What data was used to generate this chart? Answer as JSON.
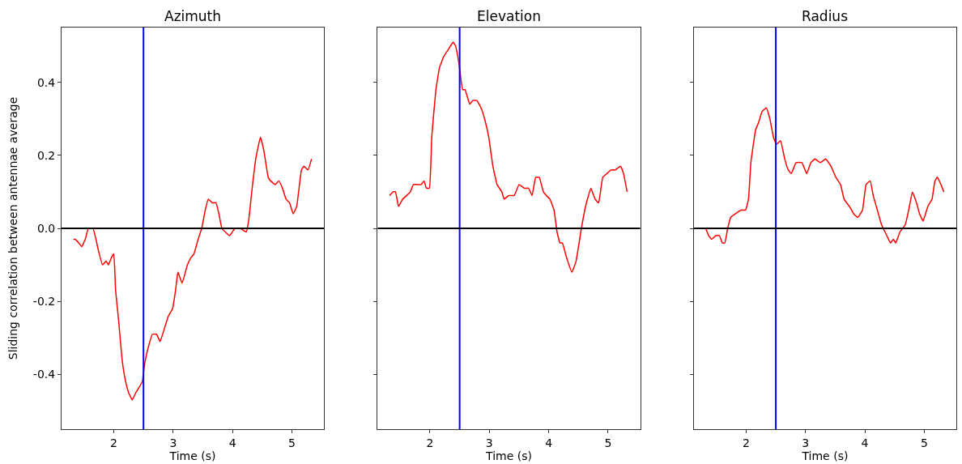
{
  "chart_data": [
    {
      "type": "line",
      "title": "Azimuth",
      "xlabel": "Time (s)",
      "ylabel": "Sliding correlation between antennae average",
      "series": [
        {
          "color": "#ff0000",
          "x": [
            1.32,
            1.35,
            1.41,
            1.46,
            1.52,
            1.57,
            1.61,
            1.65,
            1.7,
            1.74,
            1.81,
            1.87,
            1.91,
            1.96,
            2.0,
            2.03,
            2.08,
            2.14,
            2.2,
            2.25,
            2.31,
            2.37,
            2.41,
            2.48,
            2.52,
            2.59,
            2.65,
            2.72,
            2.78,
            2.86,
            2.92,
            2.99,
            3.04,
            3.08,
            3.15,
            3.24,
            3.3,
            3.35,
            3.42,
            3.48,
            3.54,
            3.59,
            3.66,
            3.72,
            3.77,
            3.82,
            3.88,
            3.95,
            4.04,
            4.13,
            4.23,
            4.27,
            4.33,
            4.39,
            4.47,
            4.53,
            4.6,
            4.64,
            4.72,
            4.78,
            4.84,
            4.9,
            4.96,
            5.02,
            5.08,
            5.16,
            5.2,
            5.27,
            5.33
          ],
          "values": [
            -0.03,
            -0.03,
            -0.04,
            -0.05,
            -0.03,
            0.0,
            0.0,
            0.0,
            -0.03,
            -0.06,
            -0.1,
            -0.09,
            -0.1,
            -0.08,
            -0.07,
            -0.17,
            -0.25,
            -0.36,
            -0.42,
            -0.45,
            -0.47,
            -0.45,
            -0.44,
            -0.42,
            -0.37,
            -0.32,
            -0.29,
            -0.29,
            -0.31,
            -0.27,
            -0.24,
            -0.22,
            -0.17,
            -0.12,
            -0.15,
            -0.1,
            -0.08,
            -0.07,
            -0.03,
            0.0,
            0.05,
            0.08,
            0.07,
            0.07,
            0.04,
            0.0,
            -0.01,
            -0.02,
            0.0,
            0.0,
            -0.01,
            0.02,
            0.11,
            0.19,
            0.25,
            0.21,
            0.14,
            0.13,
            0.12,
            0.13,
            0.11,
            0.08,
            0.07,
            0.04,
            0.06,
            0.16,
            0.17,
            0.16,
            0.19
          ]
        }
      ],
      "xlim": [
        1.12,
        5.54
      ],
      "xticks": [
        2,
        3,
        4,
        5
      ],
      "ylim": [
        -0.55,
        0.55
      ],
      "yticks": [
        -0.4,
        -0.2,
        {
          "value": 0,
          "label": "0.0"
        },
        0.2,
        0.4
      ],
      "ref_lines": [
        {
          "axis": "x",
          "value": 2.5,
          "color": "#0000ff"
        },
        {
          "axis": "y",
          "value": 0,
          "color": "#000000"
        }
      ]
    },
    {
      "type": "line",
      "title": "Elevation",
      "xlabel": "Time (s)",
      "tick_labels": "x",
      "series": [
        {
          "color": "#ff0000",
          "x": [
            1.32,
            1.38,
            1.42,
            1.47,
            1.54,
            1.61,
            1.67,
            1.72,
            1.79,
            1.85,
            1.9,
            1.94,
            1.99,
            2.03,
            2.1,
            2.16,
            2.23,
            2.31,
            2.39,
            2.43,
            2.49,
            2.55,
            2.59,
            2.67,
            2.72,
            2.79,
            2.86,
            2.92,
            2.99,
            3.06,
            3.13,
            3.21,
            3.25,
            3.33,
            3.42,
            3.5,
            3.59,
            3.66,
            3.72,
            3.78,
            3.84,
            3.91,
            3.96,
            4.02,
            4.09,
            4.14,
            4.19,
            4.23,
            4.3,
            4.39,
            4.46,
            4.55,
            4.62,
            4.71,
            4.78,
            4.84,
            4.91,
            4.98,
            5.05,
            5.12,
            5.21,
            5.26,
            5.32
          ],
          "values": [
            0.09,
            0.1,
            0.1,
            0.06,
            0.08,
            0.09,
            0.1,
            0.12,
            0.12,
            0.12,
            0.13,
            0.11,
            0.11,
            0.25,
            0.38,
            0.44,
            0.47,
            0.49,
            0.51,
            0.5,
            0.45,
            0.38,
            0.38,
            0.34,
            0.35,
            0.35,
            0.33,
            0.3,
            0.25,
            0.17,
            0.12,
            0.1,
            0.08,
            0.09,
            0.09,
            0.12,
            0.11,
            0.11,
            0.09,
            0.14,
            0.14,
            0.1,
            0.09,
            0.08,
            0.05,
            -0.01,
            -0.04,
            -0.04,
            -0.08,
            -0.12,
            -0.09,
            0.0,
            0.06,
            0.11,
            0.08,
            0.07,
            0.14,
            0.15,
            0.16,
            0.16,
            0.17,
            0.15,
            0.1
          ]
        }
      ],
      "xlim": [
        1.12,
        5.54
      ],
      "xticks": [
        2,
        3,
        4,
        5
      ],
      "ylim": [
        -0.55,
        0.55
      ],
      "yticks": [
        -0.4,
        -0.2,
        0,
        0.2,
        0.4
      ],
      "ref_lines": [
        {
          "axis": "x",
          "value": 2.5,
          "color": "#0000ff"
        },
        {
          "axis": "y",
          "value": 0,
          "color": "#000000"
        }
      ]
    },
    {
      "type": "line",
      "title": "Radius",
      "xlabel": "Time (s)",
      "tick_labels": "x",
      "series": [
        {
          "color": "#ff0000",
          "x": [
            1.32,
            1.37,
            1.42,
            1.49,
            1.55,
            1.6,
            1.64,
            1.69,
            1.74,
            1.82,
            1.91,
            1.99,
            2.04,
            2.08,
            2.16,
            2.21,
            2.27,
            2.34,
            2.4,
            2.46,
            2.51,
            2.58,
            2.65,
            2.71,
            2.76,
            2.84,
            2.94,
            3.02,
            3.09,
            3.16,
            3.25,
            3.34,
            3.43,
            3.51,
            3.59,
            3.65,
            3.74,
            3.81,
            3.88,
            3.96,
            4.02,
            4.09,
            4.14,
            4.21,
            4.28,
            4.37,
            4.43,
            4.48,
            4.52,
            4.59,
            4.68,
            4.75,
            4.8,
            4.87,
            4.92,
            4.98,
            5.06,
            5.13,
            5.18,
            5.22,
            5.28,
            5.33
          ],
          "values": [
            0.0,
            -0.02,
            -0.03,
            -0.02,
            -0.02,
            -0.04,
            -0.04,
            0.0,
            0.03,
            0.04,
            0.05,
            0.05,
            0.08,
            0.18,
            0.27,
            0.29,
            0.32,
            0.33,
            0.3,
            0.25,
            0.23,
            0.24,
            0.19,
            0.16,
            0.15,
            0.18,
            0.18,
            0.15,
            0.18,
            0.19,
            0.18,
            0.19,
            0.17,
            0.14,
            0.12,
            0.08,
            0.06,
            0.04,
            0.03,
            0.05,
            0.12,
            0.13,
            0.09,
            0.05,
            0.01,
            -0.02,
            -0.04,
            -0.03,
            -0.04,
            -0.01,
            0.01,
            0.06,
            0.1,
            0.07,
            0.04,
            0.02,
            0.06,
            0.08,
            0.13,
            0.14,
            0.12,
            0.1
          ]
        }
      ],
      "xlim": [
        1.12,
        5.54
      ],
      "xticks": [
        2,
        3,
        4,
        5
      ],
      "ylim": [
        -0.55,
        0.55
      ],
      "yticks": [
        -0.4,
        -0.2,
        0,
        0.2,
        0.4
      ],
      "ref_lines": [
        {
          "axis": "x",
          "value": 2.5,
          "color": "#0000ff"
        },
        {
          "axis": "y",
          "value": 0,
          "color": "#000000"
        }
      ]
    }
  ]
}
